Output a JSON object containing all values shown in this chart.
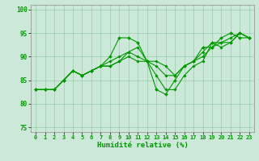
{
  "title": "",
  "xlabel": "Humidité relative (%)",
  "background_color": "#cce8d8",
  "grid_color": "#99ccaa",
  "line_color": "#009900",
  "xlim": [
    -0.5,
    23.5
  ],
  "ylim": [
    74,
    101
  ],
  "yticks": [
    75,
    80,
    85,
    90,
    95,
    100
  ],
  "xticks": [
    0,
    1,
    2,
    3,
    4,
    5,
    6,
    7,
    8,
    9,
    10,
    11,
    12,
    13,
    14,
    15,
    16,
    17,
    18,
    19,
    20,
    21,
    22,
    23
  ],
  "series_volatile": [
    83,
    83,
    83,
    85,
    87,
    86,
    87,
    88,
    90,
    94,
    94,
    93,
    89,
    83,
    82,
    85,
    88,
    89,
    92,
    92,
    94,
    95,
    94,
    94
  ],
  "series_smooth1": [
    83,
    83,
    83,
    85,
    87,
    86,
    87,
    88,
    88,
    89,
    90,
    89,
    89,
    88,
    86,
    86,
    88,
    89,
    90,
    92,
    93,
    93,
    95,
    94
  ],
  "series_smooth2": [
    83,
    83,
    83,
    85,
    87,
    86,
    87,
    88,
    88,
    89,
    91,
    90,
    89,
    89,
    88,
    86,
    88,
    89,
    91,
    93,
    93,
    94,
    95,
    94
  ],
  "series_smooth3": [
    83,
    83,
    83,
    85,
    87,
    86,
    87,
    88,
    89,
    90,
    91,
    92,
    89,
    86,
    83,
    83,
    86,
    88,
    89,
    93,
    92,
    93,
    95,
    94
  ]
}
